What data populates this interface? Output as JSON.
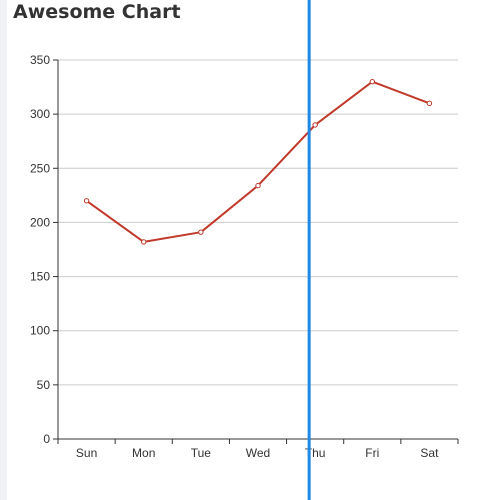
{
  "chart_data": {
    "type": "line",
    "title": "Awesome Chart",
    "categories": [
      "Sun",
      "Mon",
      "Tue",
      "Wed",
      "Thu",
      "Fri",
      "Sat"
    ],
    "series": [
      {
        "values": [
          220,
          182,
          191,
          234,
          290,
          330,
          310
        ]
      }
    ],
    "ylim": [
      0,
      350
    ],
    "yticks": [
      0,
      50,
      100,
      150,
      200,
      250,
      300,
      350
    ],
    "xlabel": "",
    "ylabel": "",
    "grid": true,
    "colors": {
      "line": "#c0392b",
      "gridline": "#cccccc",
      "axis": "#333333",
      "cursor": "#1e88e5"
    },
    "cursor_x_category": "Thu"
  }
}
